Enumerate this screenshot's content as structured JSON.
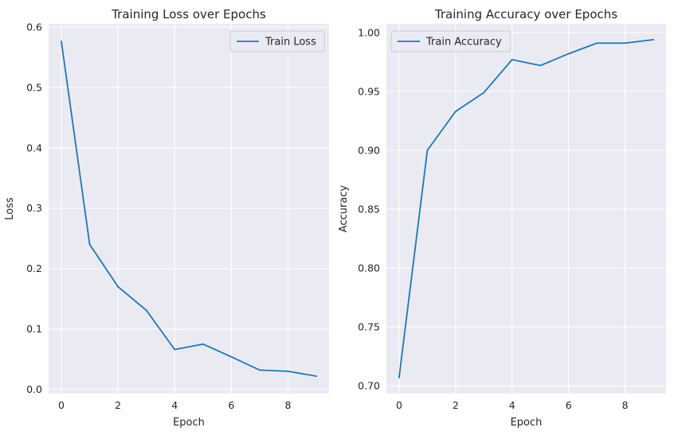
{
  "chart_data": [
    {
      "type": "line",
      "title": "Training Loss over Epochs",
      "xlabel": "Epoch",
      "ylabel": "Loss",
      "xlim": [
        -0.45,
        9.45
      ],
      "ylim": [
        -0.007,
        0.605
      ],
      "xticks": [
        0,
        2,
        4,
        6,
        8
      ],
      "xtick_labels": [
        "0",
        "2",
        "4",
        "6",
        "8"
      ],
      "yticks": [
        0.0,
        0.1,
        0.2,
        0.3,
        0.4,
        0.5,
        0.6
      ],
      "ytick_labels": [
        "0.0",
        "0.1",
        "0.2",
        "0.3",
        "0.4",
        "0.5",
        "0.6"
      ],
      "grid": true,
      "legend_position": "top-right",
      "series": [
        {
          "name": "Train Loss",
          "color": "#1f77b4",
          "x": [
            0,
            1,
            2,
            3,
            4,
            5,
            6,
            7,
            8,
            9
          ],
          "values": [
            0.576,
            0.24,
            0.17,
            0.131,
            0.066,
            0.075,
            0.054,
            0.032,
            0.03,
            0.022
          ]
        }
      ]
    },
    {
      "type": "line",
      "title": "Training Accuracy over Epochs",
      "xlabel": "Epoch",
      "ylabel": "Accuracy",
      "xlim": [
        -0.45,
        9.45
      ],
      "ylim": [
        0.6933,
        1.0074
      ],
      "xticks": [
        0,
        2,
        4,
        6,
        8
      ],
      "xtick_labels": [
        "0",
        "2",
        "4",
        "6",
        "8"
      ],
      "yticks": [
        0.7,
        0.75,
        0.8,
        0.85,
        0.9,
        0.95,
        1.0
      ],
      "ytick_labels": [
        "0.70",
        "0.75",
        "0.80",
        "0.85",
        "0.90",
        "0.95",
        "1.00"
      ],
      "grid": true,
      "legend_position": "top-left",
      "series": [
        {
          "name": "Train Accuracy",
          "color": "#1f77b4",
          "x": [
            0,
            1,
            2,
            3,
            4,
            5,
            6,
            7,
            8,
            9
          ],
          "values": [
            0.707,
            0.9,
            0.933,
            0.949,
            0.977,
            0.972,
            0.982,
            0.991,
            0.991,
            0.994
          ]
        }
      ]
    }
  ],
  "style": {
    "plot_background": "#eaeaf2",
    "grid_color": "#ffffff"
  }
}
